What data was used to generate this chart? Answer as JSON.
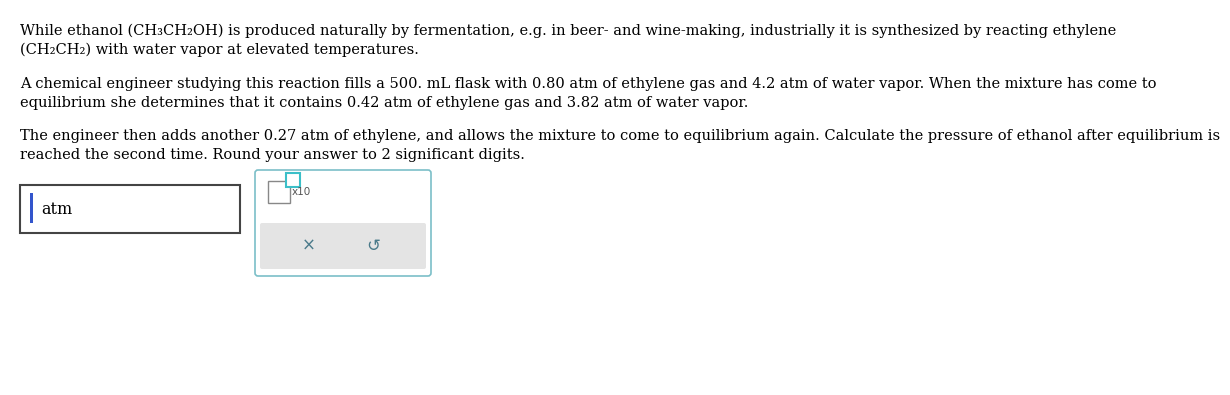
{
  "bg_color": "#ffffff",
  "text_color": "#000000",
  "font_size": 10.5,
  "para1_line1_parts": [
    {
      "text": "While ethanol ",
      "style": "normal"
    },
    {
      "text": "(CH",
      "style": "normal_paren"
    },
    {
      "text": "3",
      "style": "sub"
    },
    {
      "text": "CH",
      "style": "normal"
    },
    {
      "text": "2",
      "style": "sub"
    },
    {
      "text": "OH)",
      "style": "normal_paren"
    },
    {
      "text": " is produced naturally by fermentation, e.g. in beer- and wine-making, industrially it is synthesized by reacting ethylene",
      "style": "normal"
    }
  ],
  "para1_line2_parts": [
    {
      "text": "(CH",
      "style": "normal_paren"
    },
    {
      "text": "2",
      "style": "sub"
    },
    {
      "text": "CH",
      "style": "normal"
    },
    {
      "text": "2",
      "style": "sub"
    },
    {
      "text": ") with water vapor at elevated temperatures.",
      "style": "normal_paren"
    }
  ],
  "para2_line1": "A chemical engineer studying this reaction fills a 500. mL flask with 0.80 atm of ethylene gas and 4.2 atm of water vapor. When the mixture has come to",
  "para2_line2": "equilibrium she determines that it contains 0.42 atm of ethylene gas and 3.82 atm of water vapor.",
  "para3_line1": "The engineer then adds another 0.27 atm of ethylene, and allows the mixture to come to equilibrium again. Calculate the pressure of ethanol after equilibrium is",
  "para3_line2": "reached the second time. Round your answer to 2 significant digits.",
  "atm_label": "atm",
  "input_cursor_color": "#3355cc",
  "second_box_border": "#7bbfc8",
  "second_box_fill": "#ffffff",
  "bottom_bar_color": "#e4e4e4",
  "x_symbol": "×",
  "refresh_symbol": "↺",
  "x10_label": "x10",
  "teal_color": "#3bbfc8",
  "gray_text_color": "#4a7a8a",
  "input_box_edge": "#555555",
  "bold_nums": [
    "500.",
    "0.80",
    "4.2",
    "0.42",
    "3.82",
    "0.27",
    "2"
  ]
}
